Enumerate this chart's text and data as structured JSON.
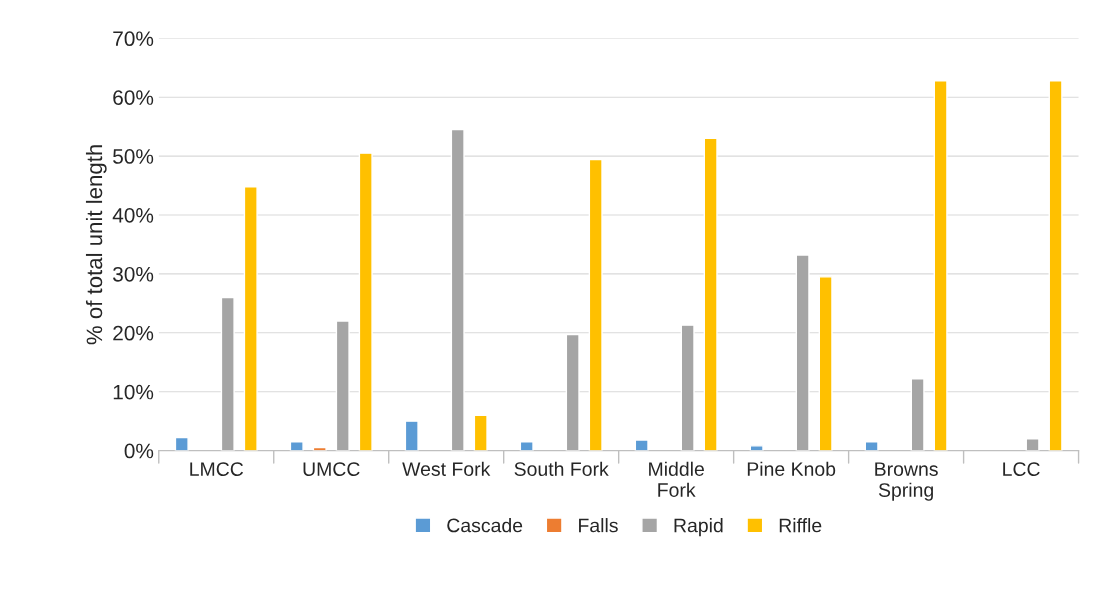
{
  "chart_data": {
    "type": "bar",
    "ylabel": "% of total unit length",
    "categories": [
      "LMCC",
      "UMCC",
      "West Fork",
      "South Fork",
      "Middle Fork",
      "Pine Knob",
      "Browns Spring",
      "LCC"
    ],
    "series": [
      {
        "name": "Cascade",
        "color": "#5b9bd5",
        "values": [
          2.2,
          1.5,
          5.0,
          1.5,
          1.8,
          0.8,
          1.5,
          null
        ]
      },
      {
        "name": "Falls",
        "color": "#ed7d31",
        "values": [
          null,
          0.5,
          null,
          null,
          null,
          null,
          null,
          null
        ]
      },
      {
        "name": "Rapid",
        "color": "#a5a5a5",
        "values": [
          26.0,
          22.0,
          54.5,
          19.7,
          21.3,
          33.2,
          12.2,
          2.0
        ]
      },
      {
        "name": "Riffle",
        "color": "#ffc000",
        "values": [
          44.8,
          50.5,
          6.0,
          49.4,
          53.0,
          29.5,
          62.8,
          62.8
        ]
      }
    ],
    "ylim": [
      0,
      70
    ],
    "yticks": [
      {
        "value": 0,
        "label": "0%"
      },
      {
        "value": 10,
        "label": "10%"
      },
      {
        "value": 20,
        "label": "20%"
      },
      {
        "value": 30,
        "label": "30%"
      },
      {
        "value": 40,
        "label": "40%"
      },
      {
        "value": 50,
        "label": "50%"
      },
      {
        "value": 60,
        "label": "60%"
      },
      {
        "value": 70,
        "label": "70%"
      }
    ],
    "grid": "y",
    "legend": "bottom"
  }
}
